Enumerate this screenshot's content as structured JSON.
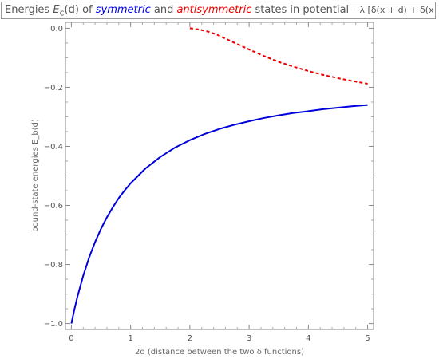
{
  "title": {
    "prefix": "Energies ",
    "e_sym": "E",
    "e_sub": "c",
    "e_arg": "(d)",
    "of": " of ",
    "symmetric": "symmetric",
    "and": " and ",
    "antisymmetric": "antisymmetric",
    "states_in": " states in potential ",
    "potential": "−λ [δ(x + d) + δ(x − d)]"
  },
  "chart_data": {
    "type": "line",
    "xlabel": "2d (distance between the two δ functions)",
    "ylabel": "bound-state energies E_b(d)",
    "xlim": [
      -0.1,
      5.1
    ],
    "ylim": [
      -1.02,
      0.02
    ],
    "x_ticks": [
      "0",
      "1",
      "2",
      "3",
      "4",
      "5"
    ],
    "y_ticks": [
      "0.0",
      "−0.2",
      "−0.4",
      "−0.6",
      "−0.8",
      "−1.0"
    ],
    "series": [
      {
        "name": "symmetric",
        "color": "#0000dd",
        "style": "solid",
        "points": [
          [
            0,
            -1.0
          ],
          [
            0.05,
            -0.953
          ],
          [
            0.1,
            -0.911
          ],
          [
            0.2,
            -0.838
          ],
          [
            0.3,
            -0.776
          ],
          [
            0.4,
            -0.724
          ],
          [
            0.5,
            -0.679
          ],
          [
            0.6,
            -0.64
          ],
          [
            0.7,
            -0.606
          ],
          [
            0.8,
            -0.575
          ],
          [
            0.9,
            -0.549
          ],
          [
            1.0,
            -0.525
          ],
          [
            1.25,
            -0.475
          ],
          [
            1.5,
            -0.436
          ],
          [
            1.75,
            -0.404
          ],
          [
            2.0,
            -0.379
          ],
          [
            2.25,
            -0.358
          ],
          [
            2.5,
            -0.341
          ],
          [
            2.75,
            -0.327
          ],
          [
            3.0,
            -0.315
          ],
          [
            3.25,
            -0.304
          ],
          [
            3.5,
            -0.295
          ],
          [
            3.75,
            -0.287
          ],
          [
            4.0,
            -0.281
          ],
          [
            4.25,
            -0.274
          ],
          [
            4.5,
            -0.269
          ],
          [
            4.75,
            -0.264
          ],
          [
            5.0,
            -0.26
          ]
        ]
      },
      {
        "name": "antisymmetric",
        "color": "#ee0000",
        "style": "dashed",
        "points": [
          [
            2.0,
            0.0
          ],
          [
            2.15,
            -0.004
          ],
          [
            2.3,
            -0.011
          ],
          [
            2.45,
            -0.021
          ],
          [
            2.6,
            -0.035
          ],
          [
            2.75,
            -0.049
          ],
          [
            3.0,
            -0.072
          ],
          [
            3.25,
            -0.094
          ],
          [
            3.5,
            -0.114
          ],
          [
            3.75,
            -0.13
          ],
          [
            4.0,
            -0.145
          ],
          [
            4.25,
            -0.158
          ],
          [
            4.5,
            -0.169
          ],
          [
            4.75,
            -0.179
          ],
          [
            5.0,
            -0.188
          ]
        ]
      }
    ]
  }
}
